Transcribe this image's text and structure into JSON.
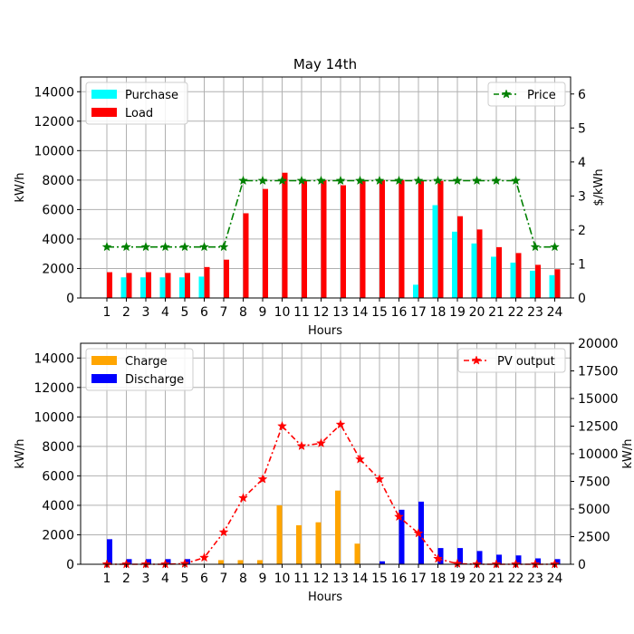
{
  "chart_data": [
    {
      "type": "bar+line",
      "title": "May 14th",
      "xlabel": "Hours",
      "ylabel": "kW/h",
      "y2label": "$/kWh",
      "categories": [
        "1",
        "2",
        "3",
        "4",
        "5",
        "6",
        "7",
        "8",
        "9",
        "10",
        "11",
        "12",
        "13",
        "14",
        "15",
        "16",
        "17",
        "18",
        "19",
        "20",
        "21",
        "22",
        "23",
        "24"
      ],
      "ylim": [
        0,
        15000
      ],
      "yticks": [
        0,
        2000,
        4000,
        6000,
        8000,
        10000,
        12000,
        14000
      ],
      "y2lim": [
        0,
        6.5
      ],
      "y2ticks": [
        0,
        1,
        2,
        3,
        4,
        5,
        6
      ],
      "bar_series": [
        {
          "name": "Purchase",
          "color": "#00ffff",
          "values": [
            0,
            1400,
            1400,
            1400,
            1400,
            1450,
            0,
            0,
            0,
            0,
            0,
            0,
            0,
            0,
            0,
            0,
            900,
            6300,
            4500,
            3700,
            2800,
            2400,
            1850,
            1550
          ]
        },
        {
          "name": "Load",
          "color": "#ff0000",
          "values": [
            1750,
            1700,
            1750,
            1700,
            1700,
            2100,
            2600,
            5750,
            7400,
            8500,
            7950,
            8000,
            7650,
            8000,
            8000,
            8000,
            7950,
            7950,
            5550,
            4650,
            3450,
            3050,
            2250,
            1950
          ]
        }
      ],
      "line_series": [
        {
          "name": "Price",
          "color": "#008000",
          "axis": "right",
          "values": [
            1.5,
            1.5,
            1.5,
            1.5,
            1.5,
            1.5,
            1.5,
            3.45,
            3.45,
            3.45,
            3.45,
            3.45,
            3.45,
            3.45,
            3.45,
            3.45,
            3.45,
            3.45,
            3.45,
            3.45,
            3.45,
            3.45,
            1.5,
            1.5
          ]
        }
      ],
      "legend_left": [
        "Purchase",
        "Load"
      ],
      "legend_right": [
        "Price"
      ]
    },
    {
      "type": "bar+line",
      "title": "",
      "xlabel": "Hours",
      "ylabel": "kW/h",
      "y2label": "kW/h",
      "categories": [
        "1",
        "2",
        "3",
        "4",
        "5",
        "6",
        "7",
        "8",
        "9",
        "10",
        "11",
        "12",
        "13",
        "14",
        "15",
        "16",
        "17",
        "18",
        "19",
        "20",
        "21",
        "22",
        "23",
        "24"
      ],
      "ylim": [
        0,
        15000
      ],
      "yticks": [
        0,
        2000,
        4000,
        6000,
        8000,
        10000,
        12000,
        14000
      ],
      "y2lim": [
        0,
        20000
      ],
      "y2ticks": [
        0,
        2500,
        5000,
        7500,
        10000,
        12500,
        15000,
        17500,
        20000
      ],
      "bar_series": [
        {
          "name": "Charge",
          "color": "#ffa500",
          "values": [
            0,
            0,
            0,
            0,
            0,
            0,
            280,
            280,
            280,
            4000,
            2650,
            2850,
            5000,
            1400,
            0,
            0,
            0,
            0,
            0,
            0,
            0,
            0,
            0,
            0
          ]
        },
        {
          "name": "Discharge",
          "color": "#0000ff",
          "values": [
            1700,
            350,
            350,
            350,
            350,
            0,
            0,
            0,
            0,
            0,
            0,
            0,
            0,
            0,
            200,
            3700,
            4250,
            1100,
            1100,
            900,
            650,
            600,
            400,
            350
          ]
        }
      ],
      "line_series": [
        {
          "name": "PV output",
          "color": "#ff0000",
          "axis": "right",
          "values": [
            0,
            0,
            0,
            0,
            50,
            600,
            2900,
            6000,
            7700,
            12500,
            10700,
            10950,
            12650,
            9500,
            7700,
            4300,
            2800,
            500,
            50,
            0,
            0,
            0,
            0,
            0
          ]
        }
      ],
      "legend_left": [
        "Charge",
        "Discharge"
      ],
      "legend_right": [
        "PV output"
      ]
    }
  ]
}
